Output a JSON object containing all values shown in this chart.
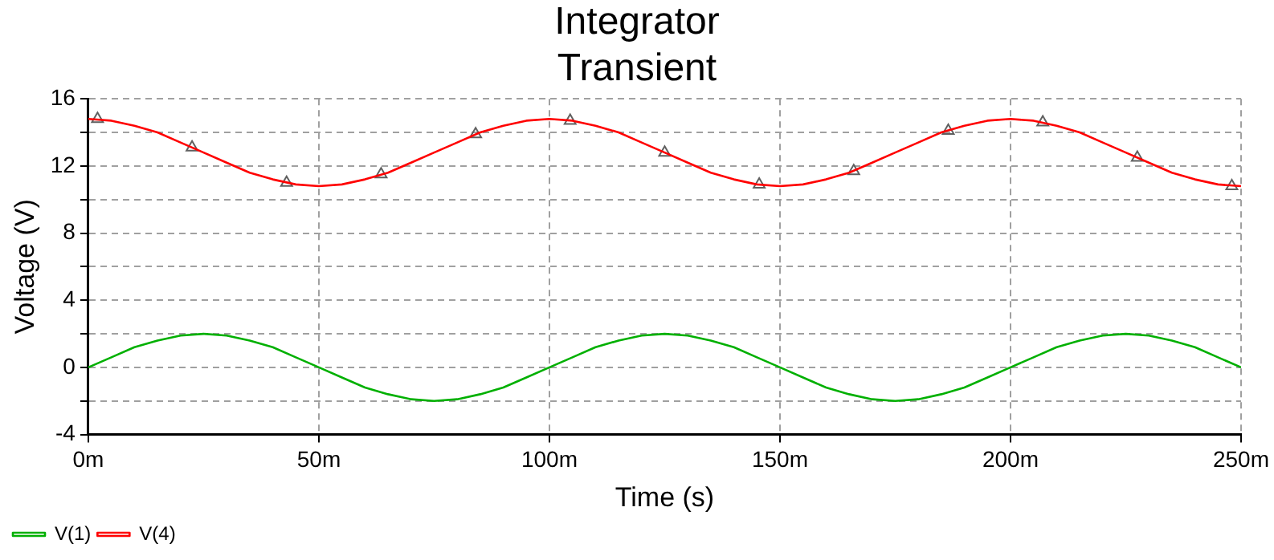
{
  "chart_data": {
    "type": "line",
    "title": "Integrator",
    "subtitle": "Transient",
    "xlabel": "Time (s)",
    "ylabel": "Voltage (V)",
    "x": [
      0,
      5,
      10,
      15,
      20,
      25,
      30,
      35,
      40,
      45,
      50,
      55,
      60,
      65,
      70,
      75,
      80,
      85,
      90,
      95,
      100,
      105,
      110,
      115,
      120,
      125,
      130,
      135,
      140,
      145,
      150,
      155,
      160,
      165,
      170,
      175,
      180,
      185,
      190,
      195,
      200,
      205,
      210,
      215,
      220,
      225,
      230,
      235,
      240,
      245,
      250
    ],
    "series": [
      {
        "name": "V(1)",
        "color": "#00b000",
        "values": [
          0,
          0.6,
          1.2,
          1.6,
          1.9,
          2,
          1.9,
          1.6,
          1.2,
          0.6,
          0,
          -0.6,
          -1.2,
          -1.6,
          -1.9,
          -2,
          -1.9,
          -1.6,
          -1.2,
          -0.6,
          0,
          0.6,
          1.2,
          1.6,
          1.9,
          2,
          1.9,
          1.6,
          1.2,
          0.6,
          0,
          -0.6,
          -1.2,
          -1.6,
          -1.9,
          -2,
          -1.9,
          -1.6,
          -1.2,
          -0.6,
          0,
          0.6,
          1.2,
          1.6,
          1.9,
          2,
          1.9,
          1.6,
          1.2,
          0.6,
          0
        ]
      },
      {
        "name": "V(4)",
        "color": "#ff0000",
        "values": [
          14.8,
          14.7,
          14.4,
          14.0,
          13.4,
          12.8,
          12.2,
          11.6,
          11.2,
          10.9,
          10.8,
          10.9,
          11.2,
          11.6,
          12.2,
          12.8,
          13.4,
          14.0,
          14.4,
          14.7,
          14.8,
          14.7,
          14.4,
          14.0,
          13.4,
          12.8,
          12.2,
          11.6,
          11.2,
          10.9,
          10.8,
          10.9,
          11.2,
          11.6,
          12.2,
          12.8,
          13.4,
          14.0,
          14.4,
          14.7,
          14.8,
          14.7,
          14.4,
          14.0,
          13.4,
          12.8,
          12.2,
          11.6,
          11.2,
          10.9,
          10.8
        ]
      },
      {
        "type": "scatter",
        "marker": "triangle",
        "color": "#606060",
        "x": [
          2,
          22.5,
          43,
          63.5,
          84,
          104.5,
          125,
          145.5,
          166,
          186.5,
          207,
          227.5,
          248
        ],
        "values": [
          14.8,
          13.1,
          11.0,
          11.5,
          13.9,
          14.7,
          12.8,
          10.9,
          11.7,
          14.1,
          14.6,
          12.5,
          10.8
        ]
      }
    ],
    "xlim": [
      0,
      250
    ],
    "xticks": [
      {
        "value": 0,
        "label": "0m"
      },
      {
        "value": 50,
        "label": "50m"
      },
      {
        "value": 100,
        "label": "100m"
      },
      {
        "value": 150,
        "label": "150m"
      },
      {
        "value": 200,
        "label": "200m"
      },
      {
        "value": 250,
        "label": "250m"
      }
    ],
    "ylim": [
      -4,
      16
    ],
    "yticks": [
      -4,
      {
        "value": -2,
        "label": null
      },
      0,
      {
        "value": 2,
        "label": null
      },
      4,
      {
        "value": 6,
        "label": null
      },
      8,
      {
        "value": 10,
        "label": null
      },
      12,
      {
        "value": 14,
        "label": null
      },
      16
    ],
    "grid": true,
    "marker": "none",
    "legend": "bottom left"
  }
}
